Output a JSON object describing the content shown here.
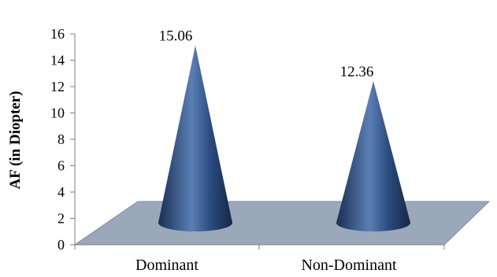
{
  "chart_data": {
    "type": "bar",
    "style": "3d-cone",
    "categories": [
      "Dominant",
      "Non-Dominant"
    ],
    "values": [
      15.06,
      12.36
    ],
    "data_labels": [
      "15.06",
      "12.36"
    ],
    "title": "",
    "xlabel": "",
    "ylabel": "AF (in Diopter)",
    "ylim": [
      0,
      16
    ],
    "yticks": [
      0,
      2,
      4,
      6,
      8,
      10,
      12,
      14,
      16
    ],
    "ytick_labels": [
      "0",
      "2",
      "4",
      "6",
      "8",
      "10",
      "12",
      "14",
      "16"
    ],
    "grid": false,
    "legend": "none",
    "colors": {
      "cone": "#1f3864",
      "cone_highlight": "#5b7fb5",
      "floor": "#9aa8ba"
    }
  }
}
